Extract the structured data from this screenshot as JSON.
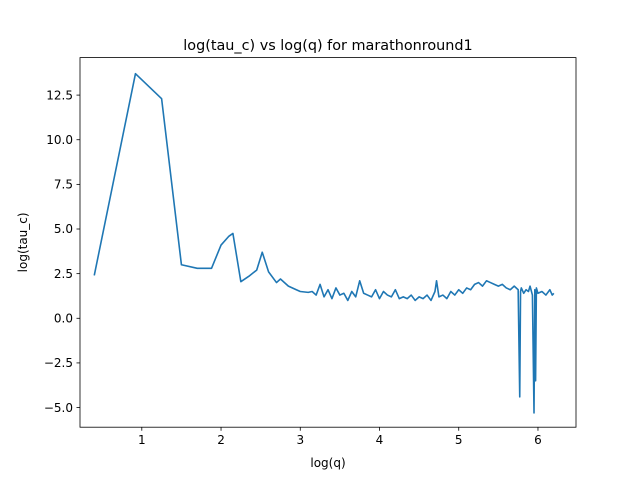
{
  "chart_data": {
    "type": "line",
    "title": "log(tau_c) vs log(q) for marathonround1",
    "xlabel": "log(q)",
    "ylabel": "log(tau_c)",
    "xlim": [
      0.22,
      6.48
    ],
    "ylim": [
      -6.1,
      14.6
    ],
    "xticks": [
      1,
      2,
      3,
      4,
      5,
      6
    ],
    "xtick_labels": [
      "1",
      "2",
      "3",
      "4",
      "5",
      "6"
    ],
    "yticks": [
      -5.0,
      -2.5,
      0.0,
      2.5,
      5.0,
      7.5,
      10.0,
      12.5
    ],
    "ytick_labels": [
      "−5.0",
      "−2.5",
      "0.0",
      "2.5",
      "5.0",
      "7.5",
      "10.0",
      "12.5"
    ],
    "grid": false,
    "series": [
      {
        "color": "#1f77b4",
        "x": [
          0.4,
          0.92,
          1.25,
          1.5,
          1.7,
          1.88,
          2.0,
          2.1,
          2.15,
          2.25,
          2.35,
          2.45,
          2.52,
          2.6,
          2.7,
          2.75,
          2.85,
          2.95,
          3.0,
          3.1,
          3.15,
          3.2,
          3.25,
          3.3,
          3.35,
          3.4,
          3.45,
          3.5,
          3.55,
          3.6,
          3.65,
          3.7,
          3.75,
          3.8,
          3.85,
          3.9,
          3.95,
          4.0,
          4.05,
          4.1,
          4.15,
          4.2,
          4.25,
          4.3,
          4.35,
          4.4,
          4.45,
          4.5,
          4.55,
          4.6,
          4.65,
          4.7,
          4.72,
          4.75,
          4.8,
          4.85,
          4.9,
          4.95,
          5.0,
          5.05,
          5.1,
          5.15,
          5.2,
          5.25,
          5.3,
          5.35,
          5.4,
          5.45,
          5.5,
          5.55,
          5.6,
          5.65,
          5.7,
          5.75,
          5.77,
          5.78,
          5.79,
          5.82,
          5.85,
          5.88,
          5.9,
          5.93,
          5.95,
          5.96,
          5.97,
          5.98,
          6.0,
          6.05,
          6.1,
          6.15,
          6.18,
          6.2
        ],
        "y": [
          2.4,
          13.7,
          12.3,
          3.0,
          2.8,
          2.8,
          4.1,
          4.6,
          4.75,
          2.05,
          2.35,
          2.7,
          3.7,
          2.6,
          2.0,
          2.2,
          1.8,
          1.6,
          1.5,
          1.45,
          1.5,
          1.3,
          1.9,
          1.2,
          1.6,
          1.1,
          1.7,
          1.3,
          1.4,
          1.0,
          1.5,
          1.2,
          2.1,
          1.4,
          1.3,
          1.2,
          1.6,
          1.1,
          1.5,
          1.3,
          1.2,
          1.6,
          1.1,
          1.2,
          1.1,
          1.3,
          1.0,
          1.2,
          1.1,
          1.3,
          1.0,
          1.5,
          2.1,
          1.2,
          1.3,
          1.1,
          1.5,
          1.3,
          1.6,
          1.4,
          1.7,
          1.6,
          1.9,
          2.0,
          1.8,
          2.1,
          2.0,
          1.9,
          1.8,
          1.9,
          1.7,
          1.6,
          1.8,
          1.6,
          -4.4,
          1.5,
          1.7,
          1.4,
          1.6,
          1.5,
          1.8,
          1.3,
          -5.3,
          1.6,
          -3.5,
          1.7,
          1.4,
          1.5,
          1.3,
          1.6,
          1.3,
          1.4
        ]
      }
    ]
  }
}
